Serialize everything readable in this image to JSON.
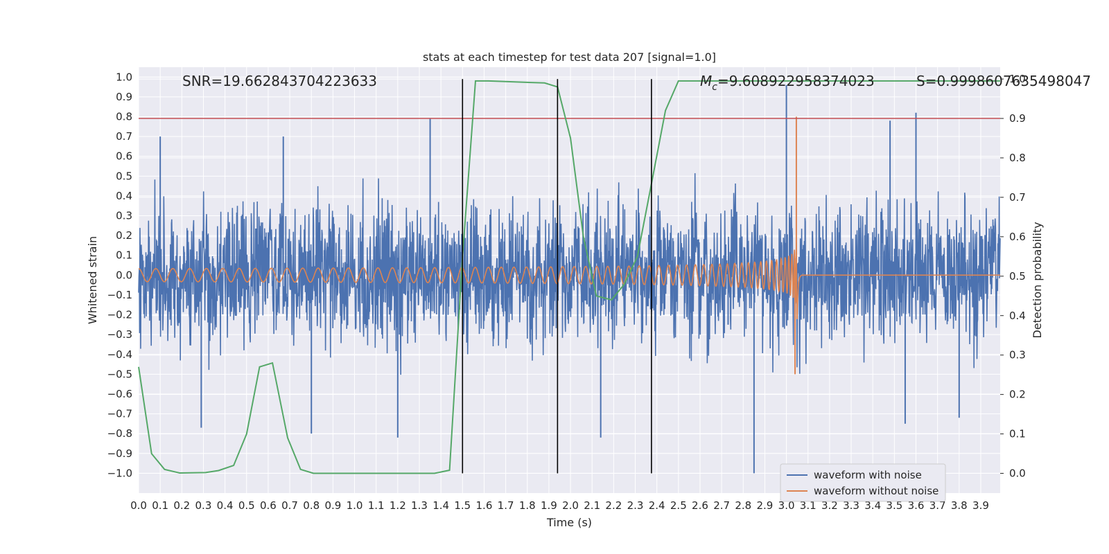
{
  "chart_data": {
    "type": "line",
    "title": "stats at each timestep for test data 207 [signal=1.0]",
    "xlabel": "Time (s)",
    "ylabel_left": "Whitened strain",
    "ylabel_right": "Detection probability",
    "xlim": [
      0.0,
      3.99
    ],
    "ylim_left": [
      -1.1,
      1.05
    ],
    "ylim_right": [
      -0.05,
      1.03
    ],
    "x_ticks": [
      "0.0",
      "0.1",
      "0.2",
      "0.3",
      "0.4",
      "0.5",
      "0.6",
      "0.7",
      "0.8",
      "0.9",
      "1.0",
      "1.1",
      "1.2",
      "1.3",
      "1.4",
      "1.5",
      "1.6",
      "1.7",
      "1.8",
      "1.9",
      "2.0",
      "2.1",
      "2.2",
      "2.3",
      "2.4",
      "2.5",
      "2.6",
      "2.7",
      "2.8",
      "2.9",
      "3.0",
      "3.1",
      "3.2",
      "3.3",
      "3.4",
      "3.5",
      "3.6",
      "3.7",
      "3.8",
      "3.9"
    ],
    "y_ticks_left": [
      "−1.0",
      "−0.9",
      "−0.8",
      "−0.7",
      "−0.6",
      "−0.5",
      "−0.4",
      "−0.3",
      "−0.2",
      "−0.1",
      "0.0",
      "0.1",
      "0.2",
      "0.3",
      "0.4",
      "0.5",
      "0.6",
      "0.7",
      "0.8",
      "0.9",
      "1.0"
    ],
    "y_ticks_right": [
      "0.0",
      "0.1",
      "0.2",
      "0.3",
      "0.4",
      "0.5",
      "0.6",
      "0.7",
      "0.8",
      "0.9",
      "1.0"
    ],
    "annotations": {
      "snr": "SNR=19.662843704223633",
      "chirp_mass": "=9.608922958374023",
      "chirp_mass_symbol": "M",
      "chirp_mass_subscript": "c",
      "significance": "S=0.9998607635498047"
    },
    "threshold_line": {
      "value_right": 0.9,
      "color": "#c44e52"
    },
    "vertical_lines_x": [
      1.5,
      1.94,
      2.375
    ],
    "series": [
      {
        "name": "waveform with noise",
        "color": "#4c72b0",
        "description": "noisy whitened strain, amplitude about ±0.5 with spikes",
        "spikes": [
          {
            "x": 3.0,
            "y": 0.96
          },
          {
            "x": 3.01,
            "y": -0.1
          },
          {
            "x": 2.85,
            "y": -1.0
          },
          {
            "x": 2.73,
            "y": -0.25
          },
          {
            "x": 1.35,
            "y": 0.79
          },
          {
            "x": 3.6,
            "y": 0.82
          },
          {
            "x": 0.29,
            "y": -0.77
          },
          {
            "x": 0.1,
            "y": 0.7
          },
          {
            "x": 0.67,
            "y": 0.7
          },
          {
            "x": 0.8,
            "y": -0.8
          },
          {
            "x": 1.2,
            "y": -0.82
          },
          {
            "x": 2.14,
            "y": -0.82
          },
          {
            "x": 3.55,
            "y": -0.75
          },
          {
            "x": 3.48,
            "y": 0.78
          },
          {
            "x": 3.8,
            "y": -0.72
          }
        ]
      },
      {
        "name": "waveform without noise",
        "color": "#dd8452",
        "description": "chirp signal growing in amplitude and frequency up to merger at ~3.05 s",
        "merger_time": 3.05,
        "peak_value": 0.8,
        "min_value": -0.5
      },
      {
        "name": "detection probability",
        "color": "#55a868",
        "axis": "right",
        "x": [
          0.0,
          0.06,
          0.12,
          0.19,
          0.31,
          0.37,
          0.44,
          0.5,
          0.56,
          0.62,
          0.69,
          0.75,
          0.81,
          1.0,
          1.37,
          1.44,
          1.5,
          1.56,
          1.62,
          1.88,
          1.94,
          2.0,
          2.06,
          2.12,
          2.19,
          2.25,
          2.31,
          2.37,
          2.44,
          2.5,
          3.99
        ],
        "values": [
          0.27,
          0.05,
          0.01,
          0.001,
          0.002,
          0.007,
          0.02,
          0.1,
          0.27,
          0.28,
          0.09,
          0.01,
          0.0,
          0.0,
          0.0,
          0.008,
          0.55,
          0.995,
          0.995,
          0.99,
          0.98,
          0.85,
          0.6,
          0.45,
          0.44,
          0.48,
          0.55,
          0.72,
          0.92,
          0.995,
          0.995
        ]
      }
    ],
    "legend": {
      "placement": "bottom-right",
      "entries": [
        "waveform with noise",
        "waveform without noise"
      ]
    }
  }
}
